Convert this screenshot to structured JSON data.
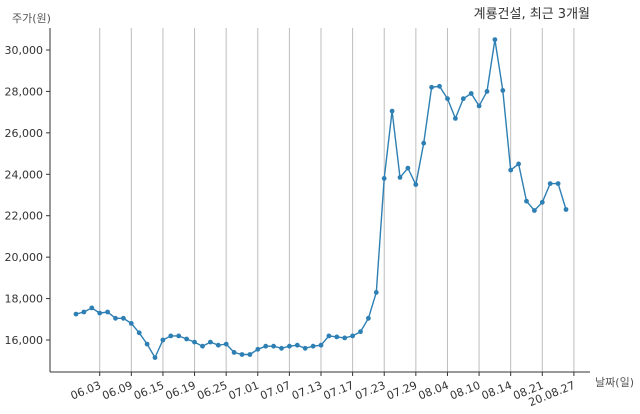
{
  "chart_data": {
    "type": "line",
    "title": "계룡건설, 최근 3개월",
    "ylabel": "주가(원)",
    "xlabel": "날짜(일)",
    "ylim": [
      14500,
      31500
    ],
    "yticks": [
      16000,
      18000,
      20000,
      22000,
      24000,
      26000,
      28000,
      30000
    ],
    "ytick_labels": [
      "16,000",
      "18,000",
      "20,000",
      "22,000",
      "24,000",
      "26,000",
      "28,000",
      "30,000"
    ],
    "xtick_labels": [
      "06.03",
      "06.09",
      "06.15",
      "06.19",
      "06.25",
      "07.01",
      "07.07",
      "07.13",
      "07.17",
      "07.23",
      "07.29",
      "08.04",
      "08.10",
      "08.14",
      "08.21",
      "20.08.27"
    ],
    "xtick_index": [
      3,
      7,
      11,
      15,
      19,
      23,
      27,
      31,
      35,
      39,
      43,
      47,
      51,
      55,
      59,
      63
    ],
    "grid": "vertical",
    "color": "#2e7fb3",
    "series": [
      {
        "values": [
          17250,
          17350,
          17550,
          17300,
          17350,
          17050,
          17050,
          16800,
          16350,
          15800,
          15150,
          16000,
          16200,
          16200,
          16050,
          15900,
          15700,
          15900,
          15750,
          15800,
          15400,
          15300,
          15300,
          15550,
          15700,
          15700,
          15600,
          15700,
          15750,
          15600,
          15700,
          15750,
          16200,
          16150,
          16100,
          16200,
          16400,
          17050,
          18300,
          23800,
          27050,
          23850,
          24300,
          23500,
          25500,
          28200,
          28250,
          27650,
          26700,
          27650,
          27900,
          27300,
          28000,
          30500,
          28050,
          24200,
          24500,
          22700,
          22250,
          22650,
          23550,
          23550,
          22300
        ]
      }
    ]
  }
}
